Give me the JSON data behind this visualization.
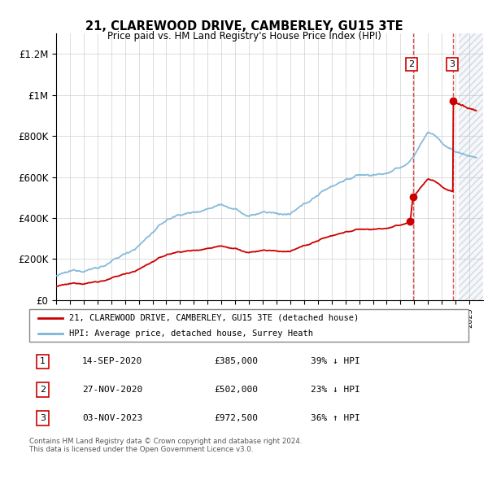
{
  "title": "21, CLAREWOOD DRIVE, CAMBERLEY, GU15 3TE",
  "subtitle": "Price paid vs. HM Land Registry's House Price Index (HPI)",
  "ylim": [
    0,
    1300000
  ],
  "yticks": [
    0,
    200000,
    400000,
    600000,
    800000,
    1000000,
    1200000
  ],
  "ytick_labels": [
    "£0",
    "£200K",
    "£400K",
    "£600K",
    "£800K",
    "£1M",
    "£1.2M"
  ],
  "hpi_color": "#7ab4d8",
  "price_color": "#cc0000",
  "dashed_color": "#cc0000",
  "legend_label_red": "21, CLAREWOOD DRIVE, CAMBERLEY, GU15 3TE (detached house)",
  "legend_label_blue": "HPI: Average price, detached house, Surrey Heath",
  "transactions": [
    {
      "num": 1,
      "date": "14-SEP-2020",
      "price": 385000,
      "pct": "39% ↓ HPI",
      "x": 2020.71
    },
    {
      "num": 2,
      "date": "27-NOV-2020",
      "price": 502000,
      "pct": "23% ↓ HPI",
      "x": 2020.9
    },
    {
      "num": 3,
      "date": "03-NOV-2023",
      "price": 972500,
      "pct": "36% ↑ HPI",
      "x": 2023.84
    }
  ],
  "footnote": "Contains HM Land Registry data © Crown copyright and database right 2024.\nThis data is licensed under the Open Government Licence v3.0.",
  "xmin": 1995,
  "xmax": 2026,
  "future_start": 2024.25
}
